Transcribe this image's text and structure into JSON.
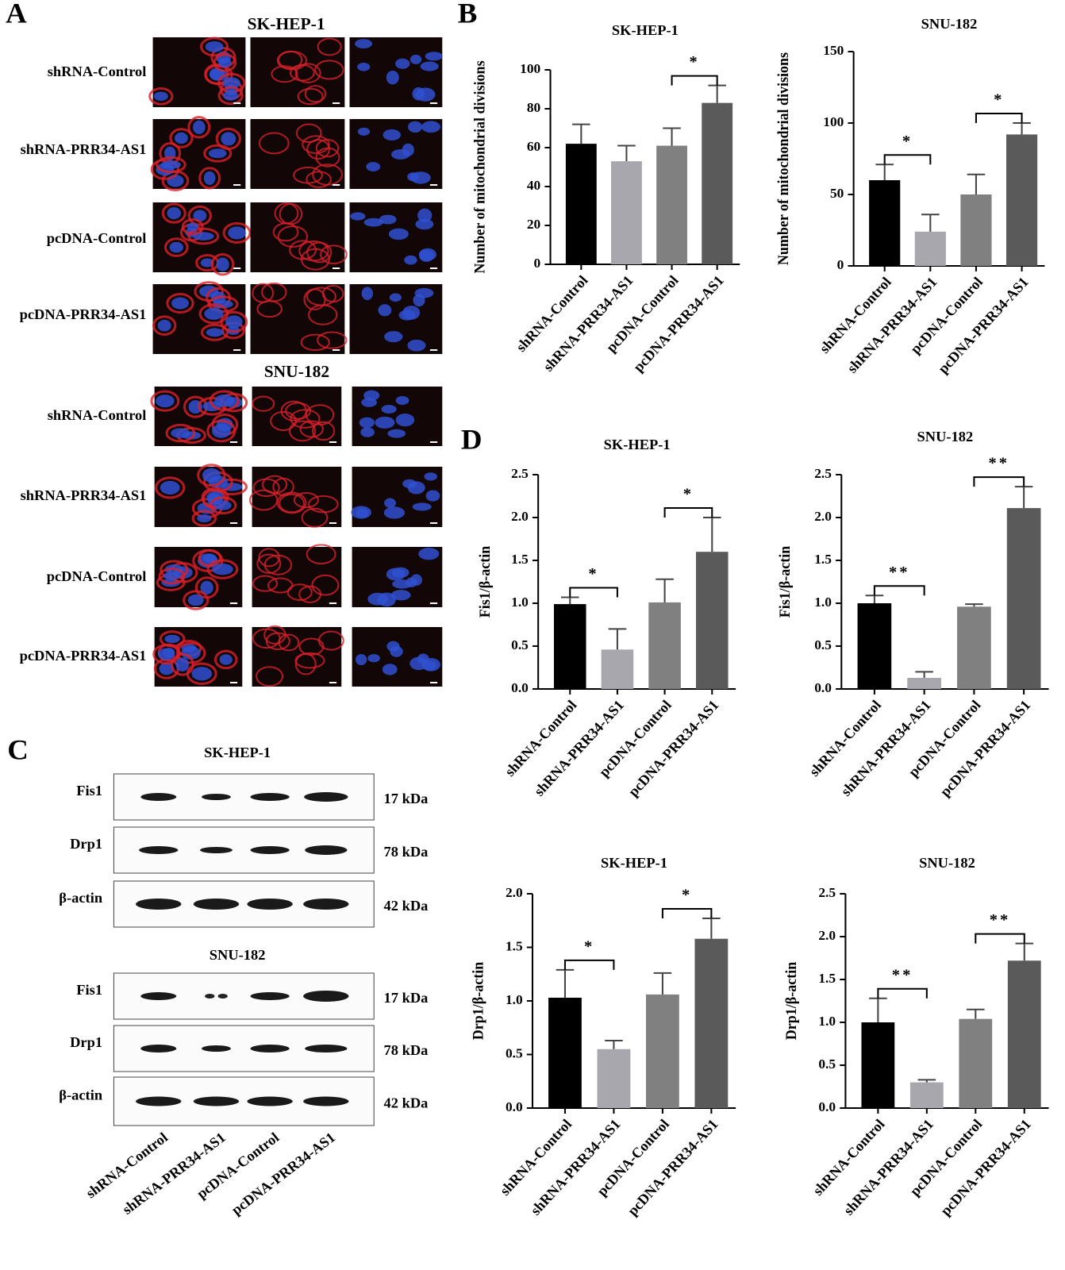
{
  "panel_labels": [
    "A",
    "B",
    "C",
    "D"
  ],
  "microscopy": [
    {
      "title": "SK-HEP-1",
      "rows": [
        "shRNA-Control",
        "shRNA-PRR34-AS1",
        "pcDNA-Control",
        "pcDNA-PRR34-AS1"
      ]
    },
    {
      "title": "SNU-182",
      "rows": [
        "shRNA-Control",
        "shRNA-PRR34-AS1",
        "pcDNA-Control",
        "pcDNA-PRR34-AS1"
      ]
    }
  ],
  "western_blot": {
    "blots": [
      {
        "title": "SK-HEP-1",
        "rows": [
          {
            "protein": "Fis1",
            "size": "17 kDa"
          },
          {
            "protein": "Drp1",
            "size": "78 kDa"
          },
          {
            "protein": "β-actin",
            "size": "42 kDa"
          }
        ]
      },
      {
        "title": "SNU-182",
        "rows": [
          {
            "protein": "Fis1",
            "size": "17 kDa"
          },
          {
            "protein": "Drp1",
            "size": "78 kDa"
          },
          {
            "protein": "β-actin",
            "size": "42 kDa"
          }
        ]
      }
    ],
    "lanes": [
      "shRNA-Control",
      "shRNA-PRR34-AS1",
      "pcDNA-Control",
      "pcDNA-PRR34-AS1"
    ]
  },
  "chart_data": [
    {
      "type": "bar",
      "title": "SK-HEP-1",
      "y_label": "Number of mitochondrial divisions",
      "categories": [
        "shRNA-Control",
        "shRNA-PRR34-AS1",
        "pcDNA-Control",
        "pcDNA-PRR34-AS1"
      ],
      "values": [
        62,
        53,
        61,
        83
      ],
      "errors": [
        10,
        8,
        9,
        9
      ],
      "colors": [
        "#000000",
        "#a7a7ad",
        "#808080",
        "#5a5a5a"
      ],
      "ylim": [
        0,
        100
      ],
      "yticks": [
        0,
        20,
        40,
        60,
        80,
        100
      ],
      "annotations": [
        {
          "between": [
            "pcDNA-Control",
            "pcDNA-PRR34-AS1"
          ],
          "label": "*"
        }
      ]
    },
    {
      "type": "bar",
      "title": "SNU-182",
      "y_label": "Number of mitochondrial divisions",
      "categories": [
        "shRNA-Control",
        "shRNA-PRR34-AS1",
        "pcDNA-Control",
        "pcDNA-PRR34-AS1"
      ],
      "values": [
        60,
        24,
        50,
        92
      ],
      "errors": [
        11,
        12,
        14,
        8
      ],
      "colors": [
        "#000000",
        "#a7a7ad",
        "#808080",
        "#5a5a5a"
      ],
      "ylim": [
        0,
        150
      ],
      "yticks": [
        0,
        50,
        100,
        150
      ],
      "annotations": [
        {
          "between": [
            "shRNA-Control",
            "shRNA-PRR34-AS1"
          ],
          "label": "*"
        },
        {
          "between": [
            "pcDNA-Control",
            "pcDNA-PRR34-AS1"
          ],
          "label": "*"
        }
      ]
    },
    {
      "type": "bar",
      "title": "SK-HEP-1",
      "y_label": "Fis1/β-actin",
      "categories": [
        "shRNA-Control",
        "shRNA-PRR34-AS1",
        "pcDNA-Control",
        "pcDNA-PRR34-AS1"
      ],
      "values": [
        0.99,
        0.46,
        1.01,
        1.6
      ],
      "errors": [
        0.08,
        0.24,
        0.27,
        0.4
      ],
      "colors": [
        "#000000",
        "#a7a7ad",
        "#808080",
        "#5a5a5a"
      ],
      "ylim": [
        0,
        2.5
      ],
      "yticks": [
        {
          "value": 0,
          "label": "0.0"
        },
        0.5,
        {
          "value": 1,
          "label": "1.0"
        },
        1.5,
        {
          "value": 2,
          "label": "2.0"
        },
        2.5
      ],
      "annotations": [
        {
          "between": [
            "shRNA-Control",
            "shRNA-PRR34-AS1"
          ],
          "label": "*"
        },
        {
          "between": [
            "pcDNA-Control",
            "pcDNA-PRR34-AS1"
          ],
          "label": "*"
        }
      ]
    },
    {
      "type": "bar",
      "title": "SNU-182",
      "y_label": "Fis1/β-actin",
      "categories": [
        "shRNA-Control",
        "shRNA-PRR34-AS1",
        "pcDNA-Control",
        "pcDNA-PRR34-AS1"
      ],
      "values": [
        1.0,
        0.13,
        0.96,
        2.11
      ],
      "errors": [
        0.09,
        0.07,
        0.03,
        0.25
      ],
      "colors": [
        "#000000",
        "#a7a7ad",
        "#808080",
        "#5a5a5a"
      ],
      "ylim": [
        0,
        2.5
      ],
      "yticks": [
        {
          "value": 0,
          "label": "0.0"
        },
        0.5,
        {
          "value": 1,
          "label": "1.0"
        },
        1.5,
        {
          "value": 2,
          "label": "2.0"
        },
        2.5
      ],
      "annotations": [
        {
          "between": [
            "shRNA-Control",
            "shRNA-PRR34-AS1"
          ],
          "label": "**"
        },
        {
          "between": [
            "pcDNA-Control",
            "pcDNA-PRR34-AS1"
          ],
          "label": "**"
        }
      ]
    },
    {
      "type": "bar",
      "title": "SK-HEP-1",
      "y_label": "Drp1/β-actin",
      "categories": [
        "shRNA-Control",
        "shRNA-PRR34-AS1",
        "pcDNA-Control",
        "pcDNA-PRR34-AS1"
      ],
      "values": [
        1.03,
        0.55,
        1.06,
        1.58
      ],
      "errors": [
        0.26,
        0.08,
        0.2,
        0.19
      ],
      "colors": [
        "#000000",
        "#a7a7ad",
        "#808080",
        "#5a5a5a"
      ],
      "ylim": [
        0,
        2.0
      ],
      "yticks": [
        {
          "value": 0,
          "label": "0.0"
        },
        0.5,
        {
          "value": 1,
          "label": "1.0"
        },
        1.5,
        {
          "value": 2,
          "label": "2.0"
        }
      ],
      "annotations": [
        {
          "between": [
            "shRNA-Control",
            "shRNA-PRR34-AS1"
          ],
          "label": "*"
        },
        {
          "between": [
            "pcDNA-Control",
            "pcDNA-PRR34-AS1"
          ],
          "label": "*"
        }
      ]
    },
    {
      "type": "bar",
      "title": "SNU-182",
      "y_label": "Drp1/β-actin",
      "categories": [
        "shRNA-Control",
        "shRNA-PRR34-AS1",
        "pcDNA-Control",
        "pcDNA-PRR34-AS1"
      ],
      "values": [
        1.0,
        0.3,
        1.04,
        1.72
      ],
      "errors": [
        0.28,
        0.03,
        0.11,
        0.2
      ],
      "colors": [
        "#000000",
        "#a7a7ad",
        "#808080",
        "#5a5a5a"
      ],
      "ylim": [
        0,
        2.5
      ],
      "yticks": [
        {
          "value": 0,
          "label": "0.0"
        },
        0.5,
        {
          "value": 1,
          "label": "1.0"
        },
        1.5,
        {
          "value": 2,
          "label": "2.0"
        },
        2.5
      ],
      "annotations": [
        {
          "between": [
            "shRNA-Control",
            "shRNA-PRR34-AS1"
          ],
          "label": "**"
        },
        {
          "between": [
            "pcDNA-Control",
            "pcDNA-PRR34-AS1"
          ],
          "label": "**"
        }
      ]
    }
  ]
}
